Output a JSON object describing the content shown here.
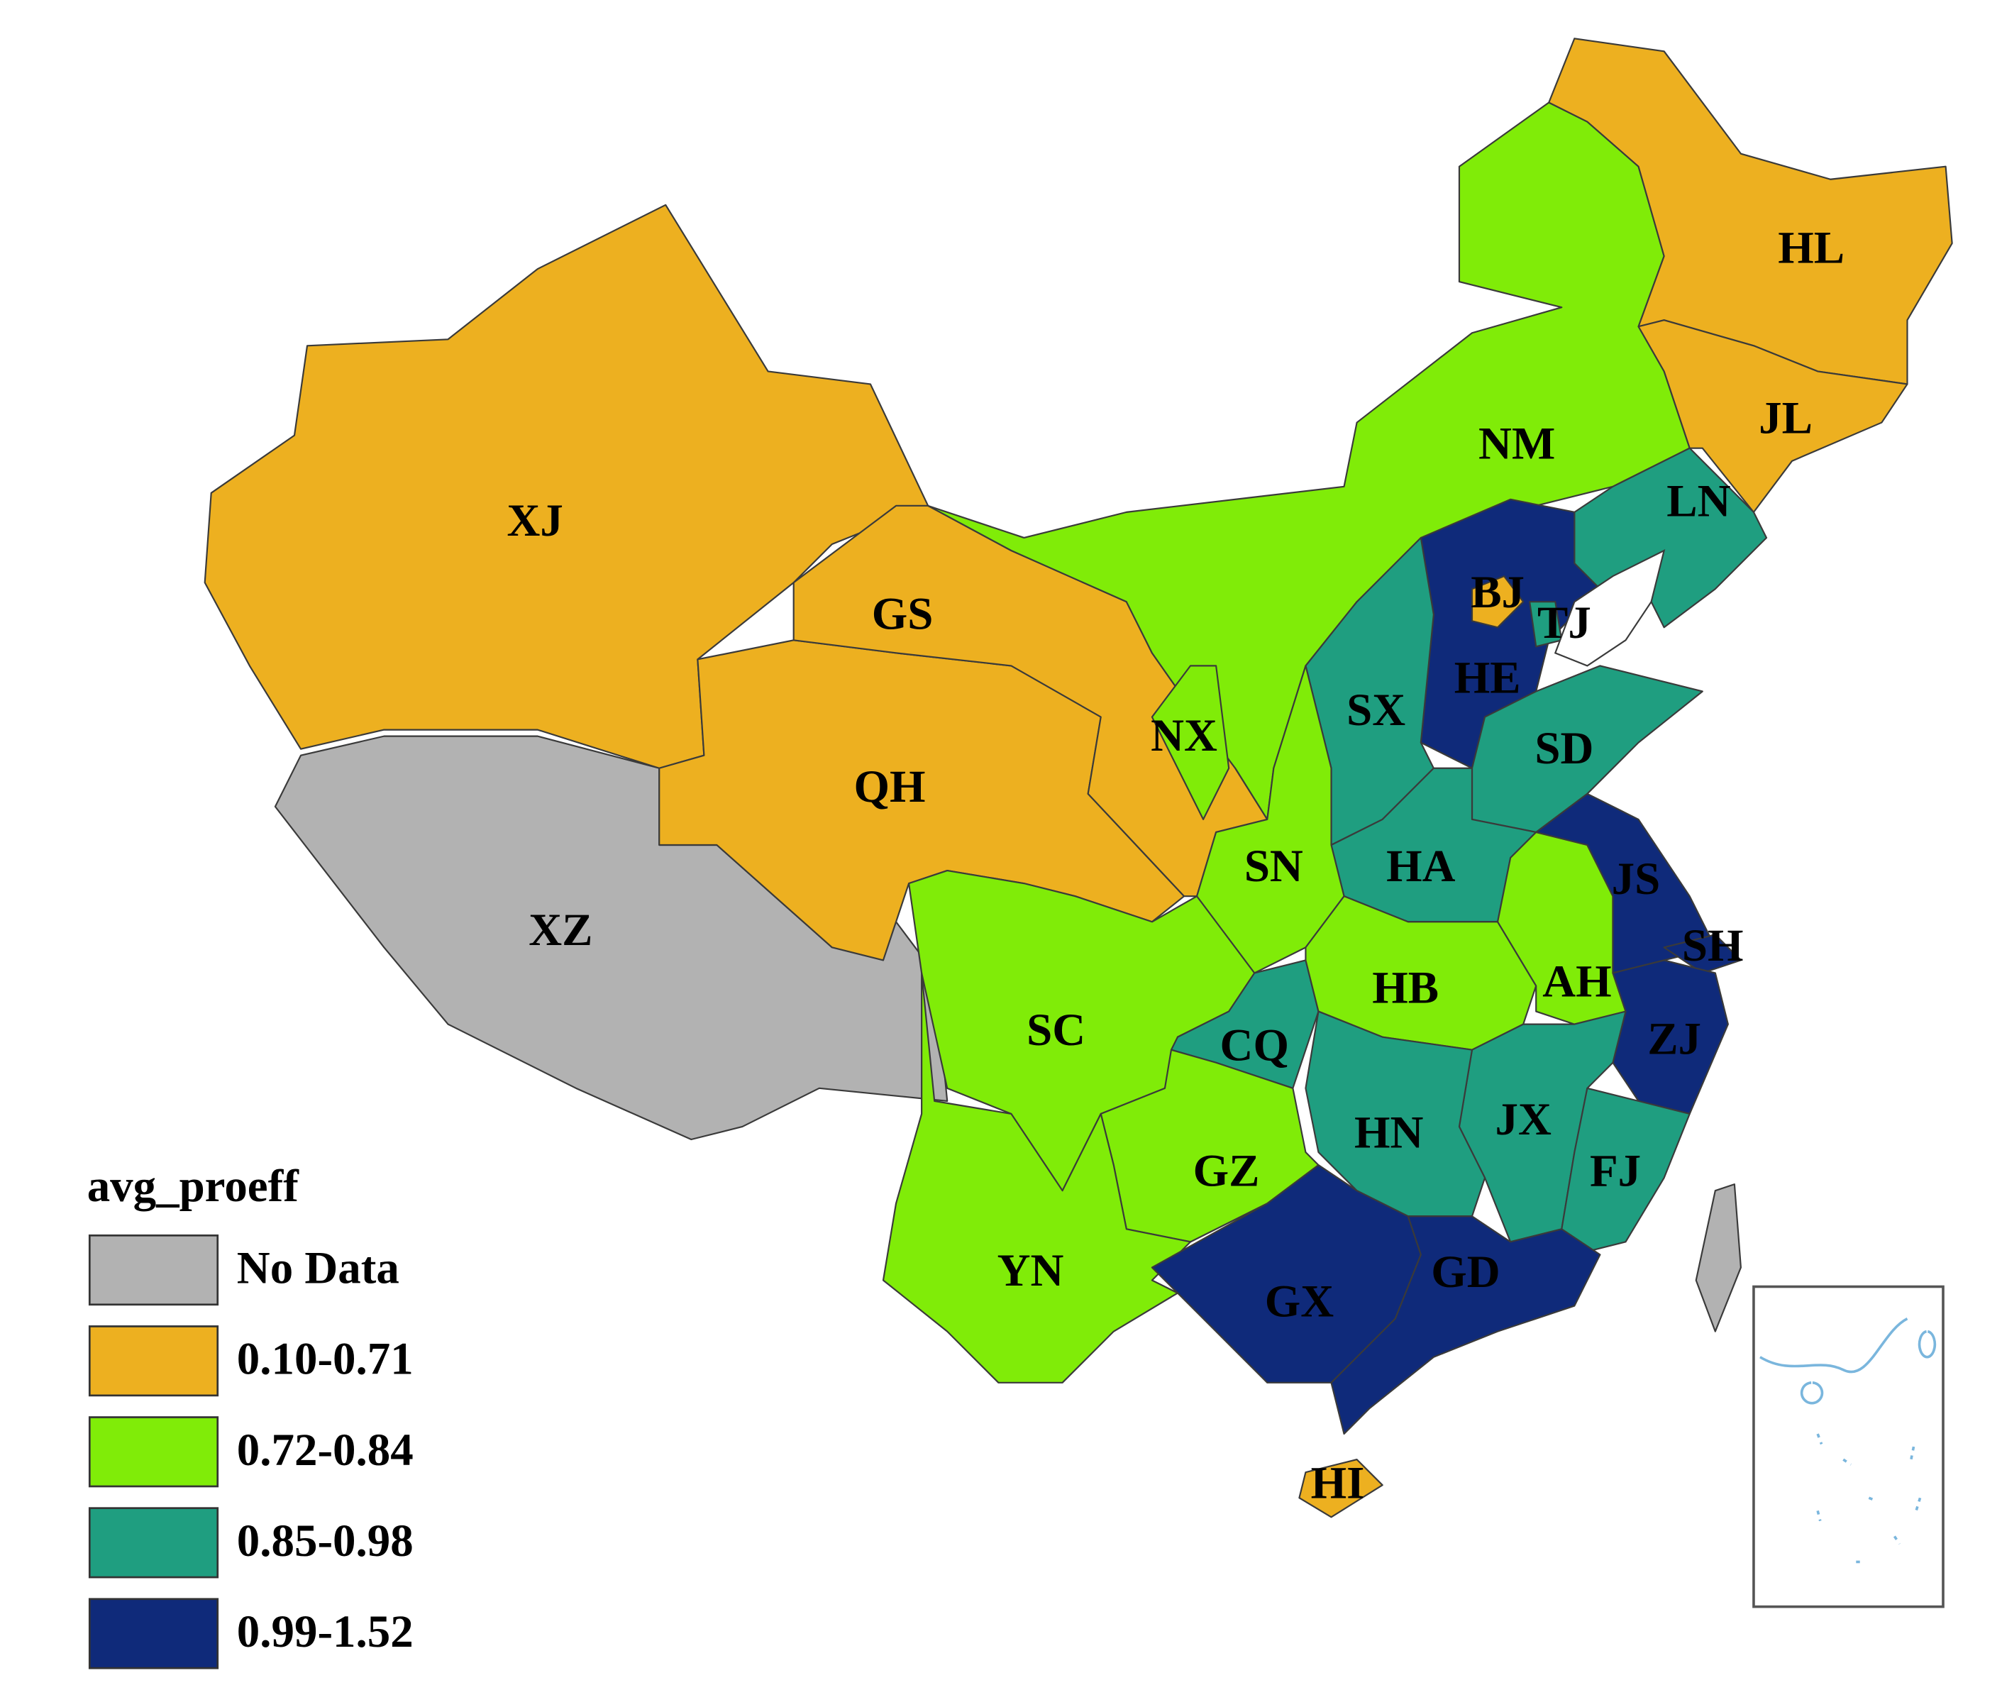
{
  "legend": {
    "title": "avg_proeff",
    "items": [
      {
        "label": "No Data",
        "color": "#b2b2b2",
        "regions": [
          "XZ"
        ]
      },
      {
        "label": "0.10-0.71",
        "color": "#edb020",
        "regions": [
          "XJ",
          "GS",
          "QH",
          "HL",
          "JL",
          "BJ",
          "HI"
        ]
      },
      {
        "label": "0.72-0.84",
        "color": "#80ec08",
        "regions": [
          "NM",
          "NX",
          "SN",
          "SC",
          "GZ",
          "YN",
          "HB",
          "AH"
        ]
      },
      {
        "label": "0.85-0.98",
        "color": "#1f9e80",
        "regions": [
          "LN",
          "TJ",
          "SX",
          "SD",
          "HA",
          "CQ",
          "HN",
          "JX",
          "FJ"
        ]
      },
      {
        "label": "0.99-1.52",
        "color": "#0f2a7a",
        "regions": [
          "HE",
          "JS",
          "SH",
          "ZJ",
          "GX",
          "GD"
        ]
      }
    ]
  }
}
